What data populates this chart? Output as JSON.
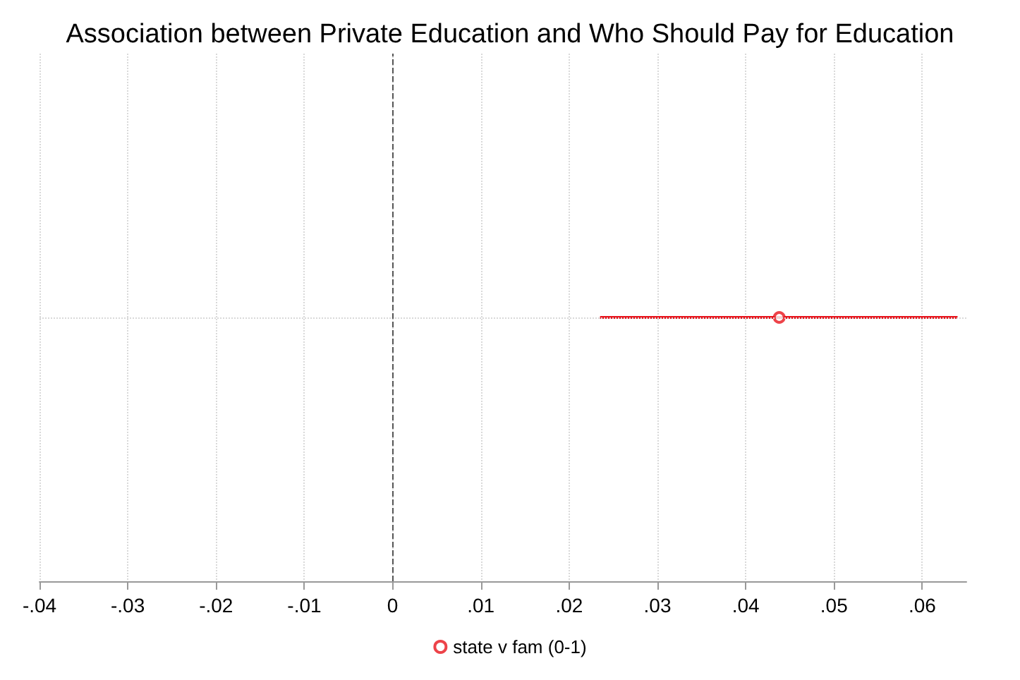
{
  "chart_data": {
    "type": "scatter",
    "title": "Association between Private Education and Who Should Pay for Education",
    "orientation": "horizontal",
    "categories": [
      null
    ],
    "series": [
      {
        "name": "state v fam (0-1)",
        "color": "#e8141c",
        "values": [
          0.0438
        ],
        "errors": [
          [
            0.0235,
            0.064
          ]
        ]
      }
    ],
    "xlim": [
      -0.04,
      0.065
    ],
    "xticks": [
      {
        "value": -0.04,
        "label": "-.04"
      },
      {
        "value": -0.03,
        "label": "-.03"
      },
      {
        "value": -0.02,
        "label": "-.02"
      },
      {
        "value": -0.01,
        "label": "-.01"
      },
      0,
      {
        "value": 0.01,
        "label": ".01"
      },
      {
        "value": 0.02,
        "label": ".02"
      },
      {
        "value": 0.03,
        "label": ".03"
      },
      {
        "value": 0.04,
        "label": ".04"
      },
      {
        "value": 0.05,
        "label": ".05"
      },
      {
        "value": 0.06,
        "label": ".06"
      }
    ],
    "ref_lines": [
      {
        "axis": "x",
        "value": 0,
        "color": "#555555",
        "line_style": "dashed"
      }
    ],
    "grid": true,
    "legend": "bottom",
    "marker": "circle",
    "tick_labels": "x"
  }
}
